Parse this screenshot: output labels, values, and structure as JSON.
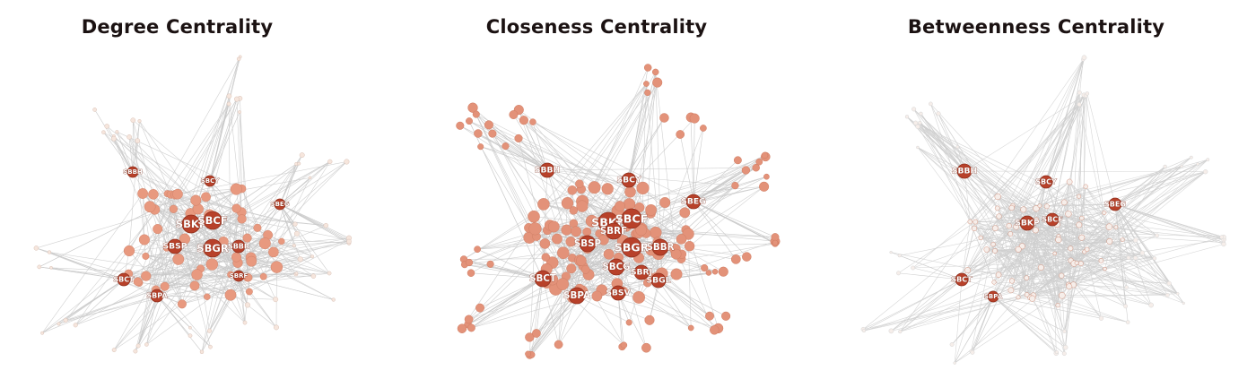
{
  "panels": [
    {
      "title": "Degree Centrality",
      "labels": [
        "SBKP",
        "SBCF",
        "SBSP",
        "SBGR",
        "SBBR",
        "SBCT",
        "SBPA",
        "SBBH",
        "SBRF",
        "SBEG",
        "SBCY"
      ],
      "colors": {
        "edge": "#c9c9c9",
        "node_large": "#b8412a",
        "node_medium": "#e8997f",
        "node_small": "#f6e6dd"
      }
    },
    {
      "title": "Closeness Centrality",
      "labels": [
        "SBKP",
        "SBCF",
        "SBRF",
        "SBSP",
        "SBGR",
        "SBBR",
        "SBCT",
        "SBPA",
        "SBBH",
        "SBCY",
        "SBEG",
        "SBSV",
        "SBGL",
        "SBCG",
        "SBRJ"
      ],
      "colors": {
        "edge": "#c9c9c9",
        "node_large": "#b8412a",
        "node_medium": "#e39279",
        "node_small": "#efb39e"
      }
    },
    {
      "title": "Betweenness Centrality",
      "labels": [
        "SBBH",
        "SBCY",
        "SBEG",
        "SBKP",
        "SBCF",
        "SBCT",
        "SBPA"
      ],
      "colors": {
        "edge": "#cfcfcf",
        "node_large": "#b8412a",
        "node_medium": "#f0c2b0",
        "node_small": "#f6eeea"
      }
    }
  ]
}
